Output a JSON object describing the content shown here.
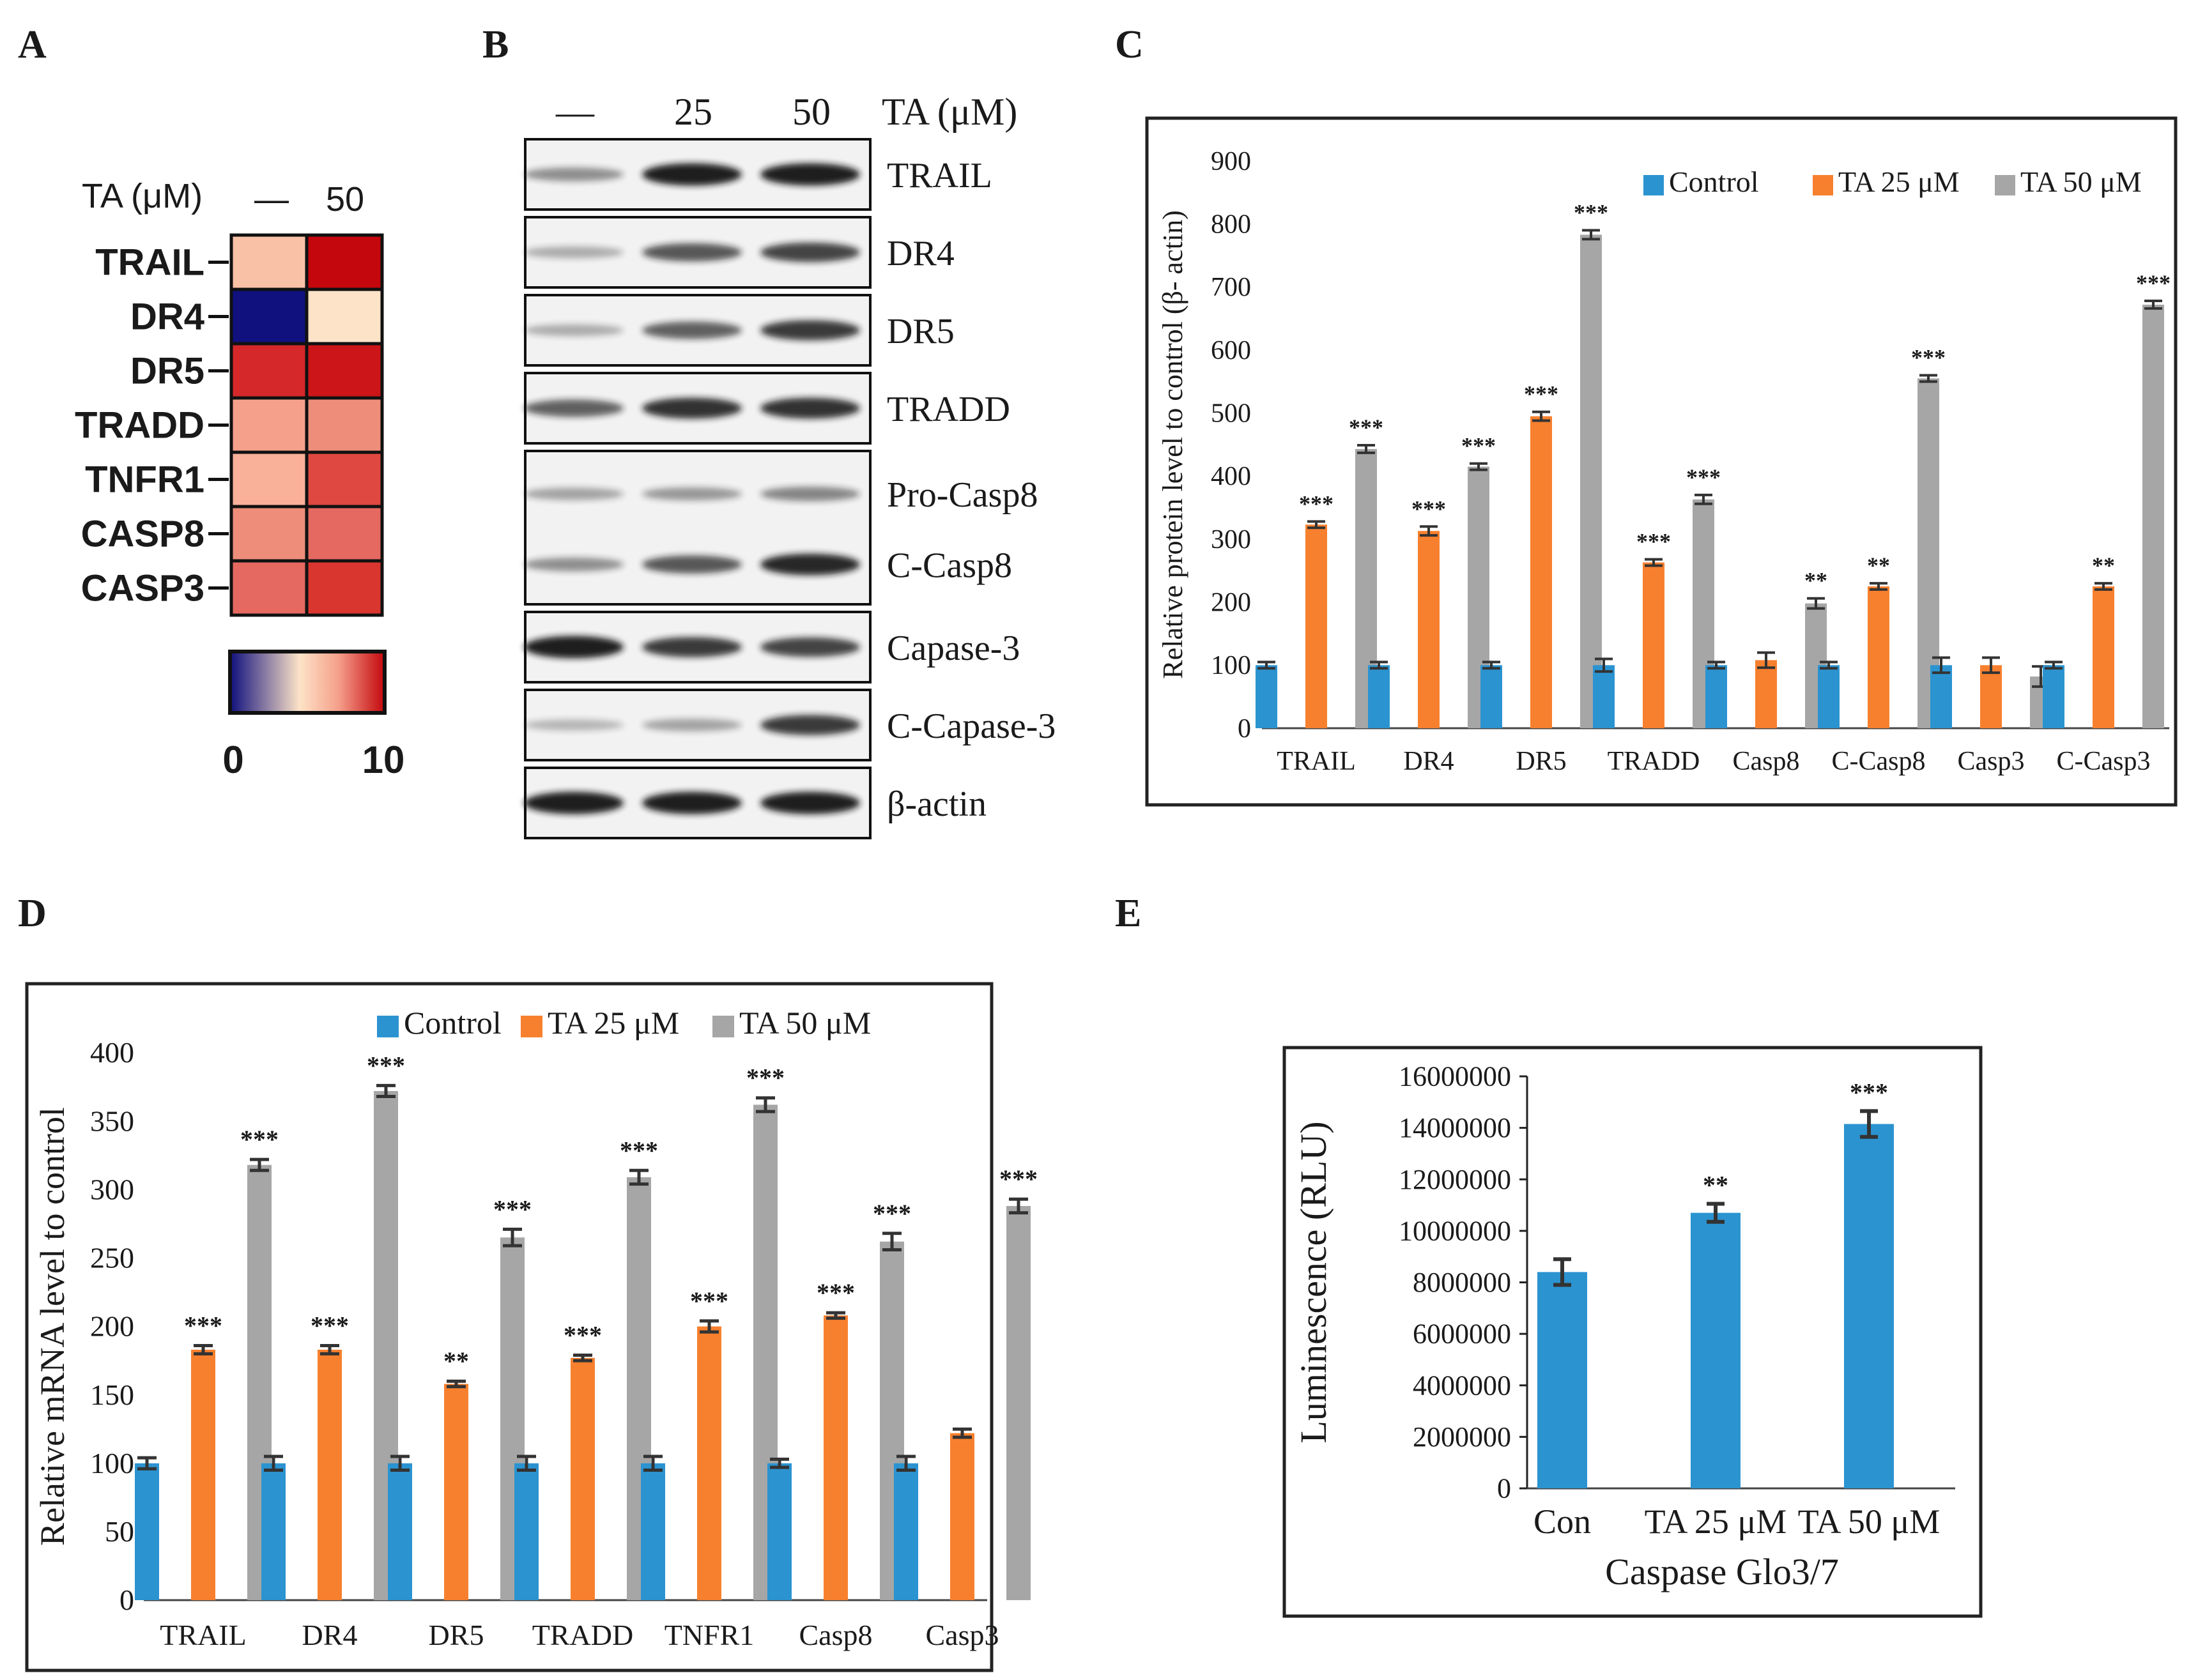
{
  "colors": {
    "control": "#2b93cf",
    "ta25": "#f7802f",
    "ta50": "#a6a6a6",
    "blot_band": "#151515",
    "frame": "#222222"
  },
  "panel_letters": {
    "a": "A",
    "b": "B",
    "c": "C",
    "d": "D",
    "e": "E"
  },
  "heatmap": {
    "header_label": "TA (μM)",
    "col_labels": [
      "—",
      "50"
    ],
    "rows": [
      {
        "label": "TRAIL",
        "colors": [
          "#f9c1a6",
          "#c4060d"
        ]
      },
      {
        "label": "DR4",
        "colors": [
          "#10107e",
          "#fde3c7"
        ]
      },
      {
        "label": "DR5",
        "colors": [
          "#d4282a",
          "#cc1518"
        ]
      },
      {
        "label": "TRADD",
        "colors": [
          "#f5a08b",
          "#ef8d7b"
        ]
      },
      {
        "label": "TNFR1",
        "colors": [
          "#f9b299",
          "#de4840"
        ]
      },
      {
        "label": "CASP8",
        "colors": [
          "#ef8d7b",
          "#e66961"
        ]
      },
      {
        "label": "CASP3",
        "colors": [
          "#e66961",
          "#d8362f"
        ]
      }
    ],
    "scale_min": "0",
    "scale_max": "10"
  },
  "blot": {
    "header_labels": [
      "—",
      "25",
      "50"
    ],
    "treatment_label": "TA (μM)",
    "panels": [
      {
        "labels": [
          "TRAIL"
        ],
        "intensity": [
          [
            0.35,
            0.95,
            0.95
          ]
        ]
      },
      {
        "labels": [
          "DR4"
        ],
        "intensity": [
          [
            0.2,
            0.65,
            0.75
          ]
        ]
      },
      {
        "labels": [
          "DR5"
        ],
        "intensity": [
          [
            0.2,
            0.6,
            0.8
          ]
        ]
      },
      {
        "labels": [
          "TRADD"
        ],
        "intensity": [
          [
            0.6,
            0.85,
            0.85
          ]
        ]
      },
      {
        "labels": [
          "Pro-Casp8",
          "C-Casp8"
        ],
        "intensity": [
          [
            0.25,
            0.3,
            0.4
          ],
          [
            0.35,
            0.65,
            0.9
          ]
        ]
      },
      {
        "labels": [
          "Capase-3"
        ],
        "intensity": [
          [
            0.95,
            0.8,
            0.75
          ]
        ]
      },
      {
        "labels": [
          "C-Capase-3"
        ],
        "intensity": [
          [
            0.15,
            0.25,
            0.8
          ]
        ]
      },
      {
        "labels": [
          "β-actin"
        ],
        "intensity": [
          [
            0.95,
            0.95,
            0.95
          ]
        ]
      }
    ]
  },
  "chart_data": [
    {
      "panel": "C",
      "type": "bar",
      "title": "",
      "xlabel": "",
      "ylabel": "Relative protein level to control (β- actin)",
      "ylim": [
        0,
        900
      ],
      "yticks": [
        0,
        100,
        200,
        300,
        400,
        500,
        600,
        700,
        800,
        900
      ],
      "categories": [
        "TRAIL",
        "DR4",
        "DR5",
        "TRADD",
        "Casp8",
        "C-Casp8",
        "Casp3",
        "C-Casp3"
      ],
      "series": [
        {
          "name": "Control",
          "values": [
            100,
            100,
            100,
            100,
            100,
            100,
            100,
            100
          ],
          "errors": [
            5,
            5,
            5,
            10,
            5,
            5,
            12,
            5
          ],
          "stars": [
            "",
            "",
            "",
            "",
            "",
            "",
            "",
            ""
          ]
        },
        {
          "name": "TA 25 μM",
          "values": [
            323,
            313,
            495,
            263,
            108,
            225,
            100,
            225
          ],
          "errors": [
            5,
            7,
            7,
            5,
            12,
            5,
            12,
            5
          ],
          "stars": [
            "***",
            "***",
            "***",
            "***",
            "",
            "**",
            "",
            "**"
          ]
        },
        {
          "name": "TA 50 μM",
          "values": [
            443,
            415,
            783,
            363,
            198,
            555,
            82,
            672
          ],
          "errors": [
            6,
            5,
            7,
            7,
            8,
            5,
            16,
            6
          ],
          "stars": [
            "***",
            "***",
            "***",
            "***",
            "**",
            "***",
            "",
            "***"
          ]
        }
      ],
      "legend": "top-right",
      "grid": false
    },
    {
      "panel": "D",
      "type": "bar",
      "title": "",
      "xlabel": "",
      "ylabel": "Relative mRNA level to control",
      "ylim": [
        0,
        400
      ],
      "yticks": [
        0,
        50,
        100,
        150,
        200,
        250,
        300,
        350,
        400
      ],
      "categories": [
        "TRAIL",
        "DR4",
        "DR5",
        "TRADD",
        "TNFR1",
        "Casp8",
        "Casp3"
      ],
      "series": [
        {
          "name": "Control",
          "values": [
            100,
            100,
            100,
            100,
            100,
            100,
            100
          ],
          "errors": [
            4,
            5,
            5,
            5,
            5,
            3,
            5
          ],
          "stars": [
            "",
            "",
            "",
            "",
            "",
            "",
            ""
          ]
        },
        {
          "name": "TA 25 μM",
          "values": [
            183,
            183,
            158,
            177,
            200,
            208,
            122
          ],
          "errors": [
            3,
            3,
            2,
            2,
            4,
            2,
            3
          ],
          "stars": [
            "***",
            "***",
            "**",
            "***",
            "***",
            "***",
            ""
          ]
        },
        {
          "name": "TA 50 μM",
          "values": [
            318,
            372,
            265,
            309,
            362,
            262,
            288
          ],
          "errors": [
            4,
            4,
            6,
            5,
            5,
            6,
            5
          ],
          "stars": [
            "***",
            "***",
            "***",
            "***",
            "***",
            "***",
            "***"
          ]
        }
      ],
      "legend": "top",
      "grid": false
    },
    {
      "panel": "E",
      "type": "bar",
      "title": "",
      "xlabel": "Caspase Glo3/7",
      "ylabel": "Luminescence (RLU)",
      "ylim": [
        0,
        16000000
      ],
      "yticks": [
        0,
        2000000,
        4000000,
        6000000,
        8000000,
        10000000,
        12000000,
        14000000,
        16000000
      ],
      "categories": [
        "Con",
        "TA 25 μM",
        "TA 50 μM"
      ],
      "series": [
        {
          "name": "Caspase Glo3/7",
          "values": [
            8400000,
            10700000,
            14150000
          ],
          "errors": [
            500000,
            350000,
            500000
          ],
          "stars": [
            "",
            "**",
            "***"
          ]
        }
      ],
      "legend": "none",
      "grid": false
    }
  ]
}
